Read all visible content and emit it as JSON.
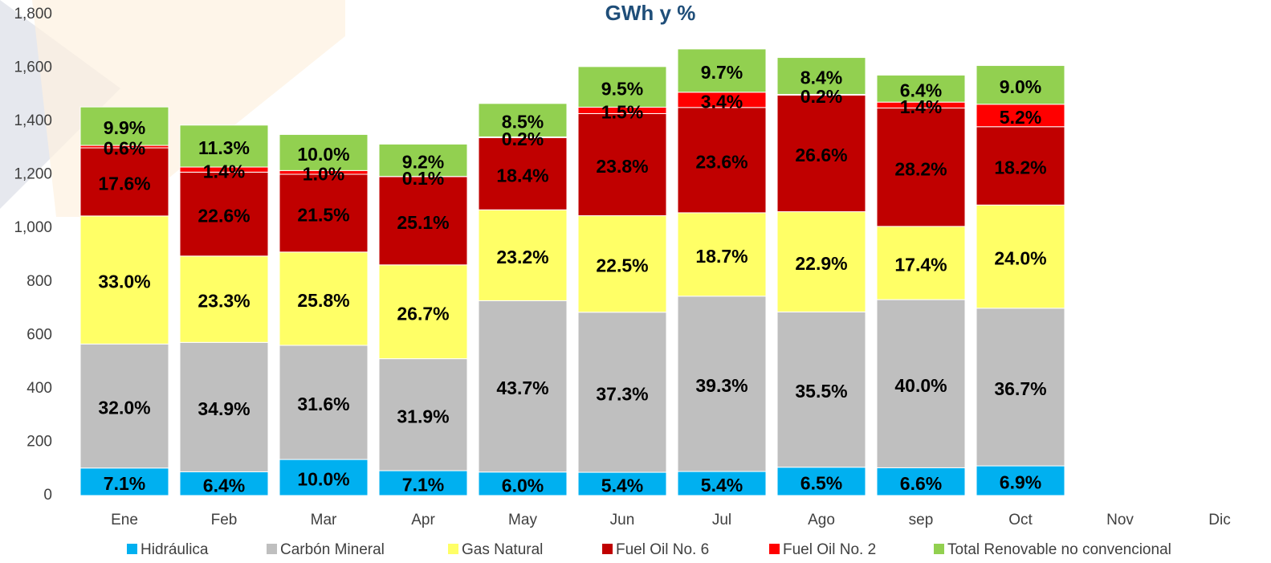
{
  "chart_data": {
    "type": "stacked_bar",
    "title": "GWh y %",
    "categories": [
      "Ene",
      "Feb",
      "Mar",
      "Apr",
      "May",
      "Jun",
      "Jul",
      "Ago",
      "sep",
      "Oct",
      "Nov",
      "Dic"
    ],
    "series": [
      {
        "name": "Hidráulica",
        "color": "#00b0f0",
        "values": [
          103,
          89,
          135,
          93,
          88,
          87,
          90,
          106,
          104,
          111,
          null,
          null
        ],
        "share_labels": [
          "7.1%",
          "6.4%",
          "10.0%",
          "7.1%",
          "6.0%",
          "5.4%",
          "5.4%",
          "6.5%",
          "6.6%",
          "6.9%",
          null,
          null
        ]
      },
      {
        "name": "Carbón Mineral",
        "color": "#bfbfbf",
        "values": [
          464,
          484,
          427,
          419,
          641,
          599,
          656,
          581,
          629,
          590,
          null,
          null
        ],
        "share_labels": [
          "32.0%",
          "34.9%",
          "31.6%",
          "31.9%",
          "43.7%",
          "37.3%",
          "39.3%",
          "35.5%",
          "40.0%",
          "36.7%",
          null,
          null
        ]
      },
      {
        "name": "Gas Natural",
        "color": "#ffff66",
        "values": [
          479,
          323,
          349,
          351,
          340,
          361,
          312,
          375,
          274,
          386,
          null,
          null
        ],
        "share_labels": [
          "33.0%",
          "23.3%",
          "25.8%",
          "26.7%",
          "23.2%",
          "22.5%",
          "18.7%",
          "22.9%",
          "17.4%",
          "24.0%",
          null,
          null
        ]
      },
      {
        "name": "Fuel Oil No. 6",
        "color": "#c00000",
        "values": [
          255,
          314,
          291,
          330,
          270,
          382,
          394,
          436,
          443,
          293,
          null,
          null
        ],
        "share_labels": [
          "17.6%",
          "22.6%",
          "21.5%",
          "25.1%",
          "18.4%",
          "23.8%",
          "23.6%",
          "26.6%",
          "28.2%",
          "18.2%",
          null,
          null
        ]
      },
      {
        "name": "Fuel Oil No. 2",
        "color": "#ff0000",
        "values": [
          9,
          19,
          14,
          1,
          3,
          24,
          57,
          3,
          22,
          84,
          null,
          null
        ],
        "share_labels": [
          "0.6%",
          "1.4%",
          "1.0%",
          "0.1%",
          "0.2%",
          "1.5%",
          "3.4%",
          "0.2%",
          "1.4%",
          "5.2%",
          null,
          null
        ]
      },
      {
        "name": "Total Renovable no convencional",
        "color": "#92d050",
        "values": [
          144,
          157,
          135,
          121,
          125,
          152,
          162,
          138,
          101,
          145,
          null,
          null
        ],
        "share_labels": [
          "9.9%",
          "11.3%",
          "10.0%",
          "9.2%",
          "8.5%",
          "9.5%",
          "9.7%",
          "8.4%",
          "6.4%",
          "9.0%",
          null,
          null
        ]
      }
    ],
    "ylim": [
      0,
      1800
    ],
    "yticks": [
      0,
      200,
      400,
      600,
      800,
      {
        "value": 1000,
        "label": "1,000"
      },
      {
        "value": 1200,
        "label": "1,200"
      },
      {
        "value": 1400,
        "label": "1,400"
      },
      {
        "value": 1600,
        "label": "1,600"
      },
      {
        "value": 1800,
        "label": "1,800"
      }
    ],
    "grid": false,
    "legend": "bottom"
  }
}
